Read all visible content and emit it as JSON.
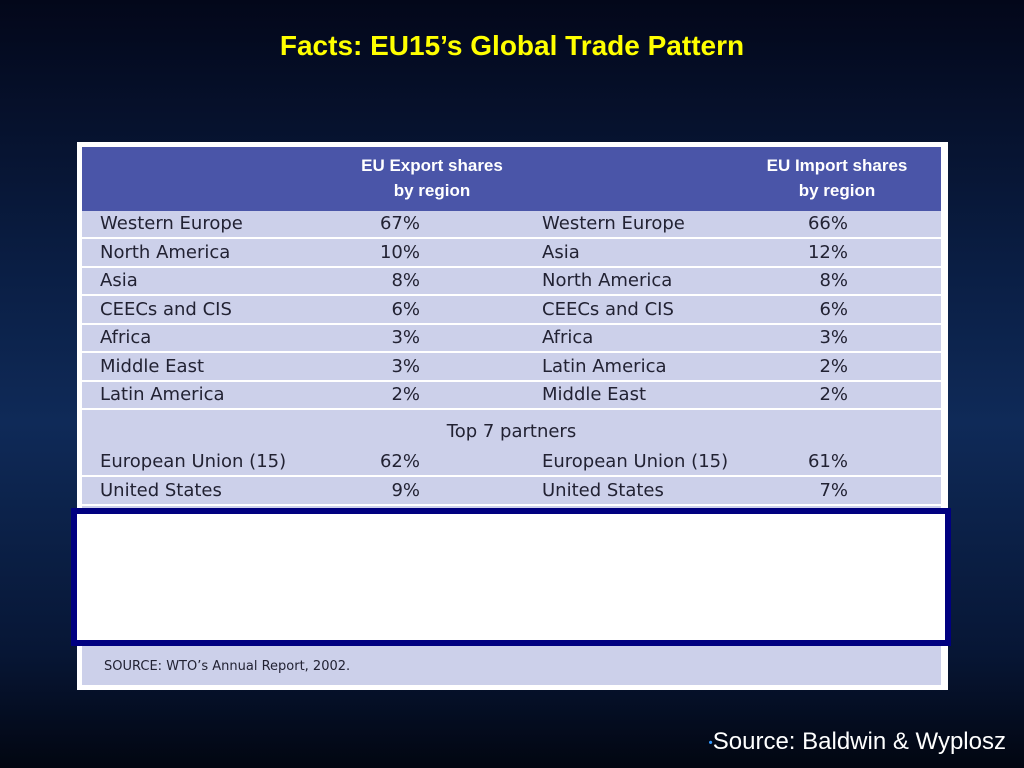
{
  "title": "Facts: EU15’s Global Trade Pattern",
  "table": {
    "export_header": "EU Export shares\nby region",
    "import_header": "EU Import shares\nby region",
    "rows": [
      {
        "export_region": "Western Europe",
        "export_share": "67%",
        "import_region": "Western Europe",
        "import_share": "66%"
      },
      {
        "export_region": "North America",
        "export_share": "10%",
        "import_region": "Asia",
        "import_share": "12%"
      },
      {
        "export_region": "Asia",
        "export_share": "8%",
        "import_region": "North America",
        "import_share": "8%"
      },
      {
        "export_region": "CEECs and CIS",
        "export_share": "6%",
        "import_region": "CEECs and CIS",
        "import_share": "6%"
      },
      {
        "export_region": "Africa",
        "export_share": "3%",
        "import_region": "Africa",
        "import_share": "3%"
      },
      {
        "export_region": "Middle East",
        "export_share": "3%",
        "import_region": "Latin America",
        "import_share": "2%"
      },
      {
        "export_region": "Latin America",
        "export_share": "2%",
        "import_region": "Middle East",
        "import_share": "2%"
      }
    ],
    "partners_label": "Top 7 partners",
    "partner_rows": [
      {
        "export_region": "European Union (15)",
        "export_share": "62%",
        "import_region": "European Union (15)",
        "import_share": "61%"
      },
      {
        "export_region": "United States",
        "export_share": "9%",
        "import_region": "United States",
        "import_share": "7%"
      }
    ],
    "source": "SOURCE: WTO’s Annual Report, 2002."
  },
  "footer": {
    "bullet": "•",
    "source": "Source: Baldwin & Wyplosz"
  },
  "colors": {
    "title": "#ffff00",
    "table_header": "#4a55a8",
    "table_body": "#ccd0ea",
    "overlay_border": "#000080"
  }
}
